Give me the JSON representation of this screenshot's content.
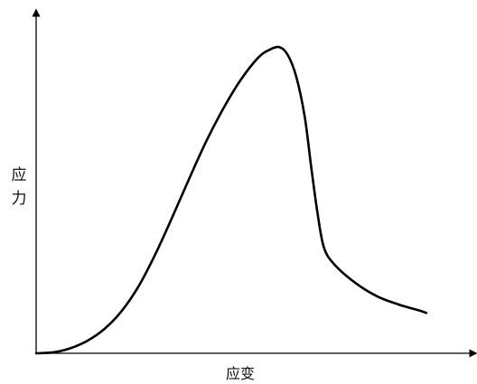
{
  "chart_data": {
    "type": "line",
    "title": "",
    "xlabel": "应变",
    "ylabel": "应力",
    "xlim": [
      0,
      1
    ],
    "ylim": [
      0,
      1
    ],
    "grid": false,
    "legend": "none",
    "x_ticks": [],
    "y_ticks": [],
    "series": [
      {
        "color": "#000000",
        "points": [
          [
            0.0,
            0.0
          ],
          [
            0.04,
            0.003
          ],
          [
            0.08,
            0.016
          ],
          [
            0.12,
            0.04
          ],
          [
            0.16,
            0.078
          ],
          [
            0.2,
            0.135
          ],
          [
            0.24,
            0.215
          ],
          [
            0.28,
            0.32
          ],
          [
            0.32,
            0.44
          ],
          [
            0.36,
            0.565
          ],
          [
            0.4,
            0.685
          ],
          [
            0.44,
            0.79
          ],
          [
            0.48,
            0.88
          ],
          [
            0.52,
            0.95
          ],
          [
            0.545,
            0.975
          ],
          [
            0.57,
            0.985
          ],
          [
            0.59,
            0.96
          ],
          [
            0.61,
            0.89
          ],
          [
            0.63,
            0.76
          ],
          [
            0.645,
            0.6
          ],
          [
            0.66,
            0.45
          ],
          [
            0.675,
            0.34
          ],
          [
            0.7,
            0.285
          ],
          [
            0.75,
            0.225
          ],
          [
            0.8,
            0.183
          ],
          [
            0.85,
            0.157
          ],
          [
            0.9,
            0.137
          ],
          [
            0.915,
            0.13
          ]
        ]
      }
    ]
  }
}
